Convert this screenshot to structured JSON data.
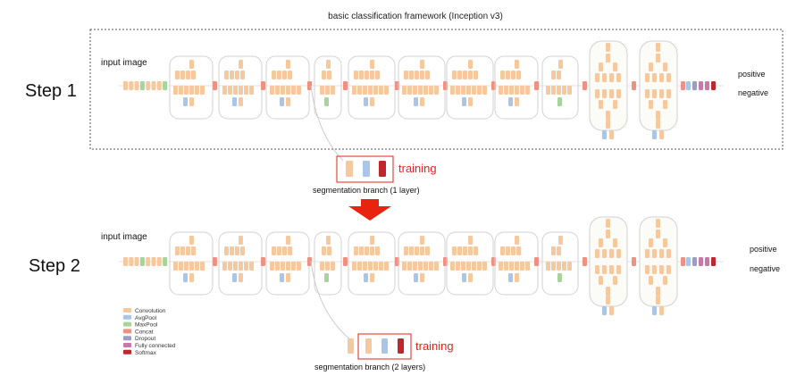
{
  "title": "basic classification framework (Inception v3)",
  "step1": {
    "label": "Step 1",
    "input_label": "input image",
    "outputs": [
      "positive",
      "negative"
    ],
    "training_label": "training",
    "branch_label": "segmentation branch (1 layer)"
  },
  "step2": {
    "label": "Step 2",
    "input_label": "input image",
    "outputs": [
      "positive",
      "negative"
    ],
    "training_label": "training",
    "branch_label": "segmentation branch (2 layers)"
  },
  "legend": [
    {
      "name": "Convolution",
      "color": "#f5c89e"
    },
    {
      "name": "AvgPool",
      "color": "#a9c6e8"
    },
    {
      "name": "MaxPool",
      "color": "#a6d49a"
    },
    {
      "name": "Concat",
      "color": "#ee9182"
    },
    {
      "name": "Dropout",
      "color": "#9d9cc6"
    },
    {
      "name": "Fully connected",
      "color": "#c979a8"
    },
    {
      "name": "Softmax",
      "color": "#c0262c"
    }
  ],
  "colors": {
    "accent_red": "#e0261a",
    "box_outline": "#555555",
    "module_outline": "#cfcfcf"
  }
}
